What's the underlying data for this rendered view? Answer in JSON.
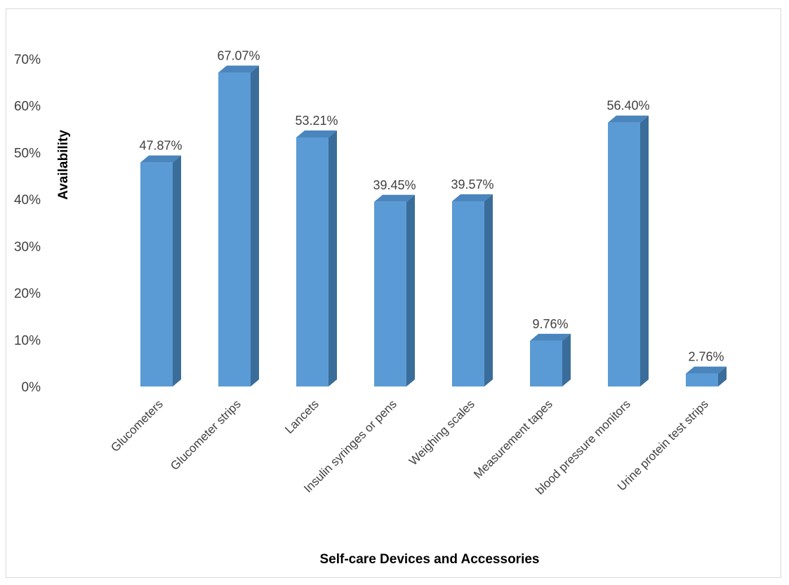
{
  "chart_data": {
    "type": "bar",
    "style": "3d-column",
    "categories": [
      "Glucometers",
      "Glucometer strips",
      "Lancets",
      "Insulin syringes or pens",
      "Weighing scales",
      "Measurement tapes",
      "blood pressure monitors",
      "Urine protein test strips"
    ],
    "values": [
      47.87,
      67.07,
      53.21,
      39.45,
      39.57,
      9.76,
      56.4,
      2.76
    ],
    "data_labels": [
      "47.87%",
      "67.07%",
      "53.21%",
      "39.45%",
      "39.57%",
      "9.76%",
      "56.40%",
      "2.76%"
    ],
    "ylim": [
      0,
      70
    ],
    "yticks": [
      0,
      10,
      20,
      30,
      40,
      50,
      60,
      70
    ],
    "ytick_labels": [
      "0%",
      "10%",
      "20%",
      "30%",
      "40%",
      "50%",
      "60%",
      "70%"
    ],
    "ylabel": "Availability",
    "xlabel": "Self-care Devices and Accessories",
    "grid": false,
    "legend": "none",
    "colors": {
      "bar_front": "#5b9bd5",
      "bar_side": "#3a6d99",
      "bar_top": "#4a85bd",
      "text": "#404040"
    }
  }
}
